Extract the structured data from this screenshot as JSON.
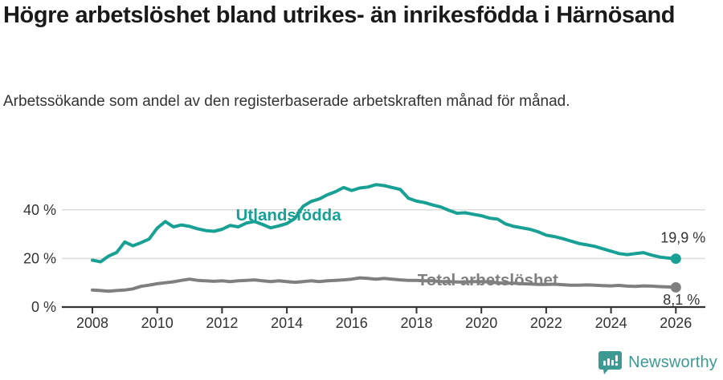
{
  "header": {
    "title": "Högre arbetslöshet bland utrikes- än inrikesfödda i Härnösand",
    "subtitle": "Arbetssökande som andel av den registerbaserade arbetskraften månad för månad."
  },
  "footer": {
    "brand": "Newsworthy",
    "brand_color": "#3d9a93",
    "logo_icon": "newsworthy-speech-bubble-bar-chart-icon"
  },
  "chart_data": {
    "type": "line",
    "title": "Högre arbetslöshet bland utrikes- än inrikesfödda i Härnösand",
    "subtitle": "Arbetssökande som andel av den registerbaserade arbetskraften månad för månad.",
    "xlabel": "",
    "ylabel": "",
    "x_start": 2008,
    "x_step": 0.25,
    "xlim": [
      2007.1,
      2026.9
    ],
    "ylim": [
      0,
      60
    ],
    "y_ticks": [
      0,
      20,
      40
    ],
    "y_tick_labels": [
      "0 %",
      "20 %",
      "40 %"
    ],
    "x_ticks": [
      2008,
      2010,
      2012,
      2014,
      2016,
      2018,
      2020,
      2022,
      2024,
      2026
    ],
    "grid": "horizontal",
    "grid_color": "#dcdcdc",
    "axis_color": "#333333",
    "tick_label_color": "#333333",
    "annotation_color": "#333333",
    "legend_position": "inline-labels",
    "series": [
      {
        "name": "Utlandsfödda",
        "color": "#18a095",
        "end_label": "19,9 %",
        "end_value": 19.9,
        "label_pos": {
          "x": 2014.05,
          "y": 38.0
        },
        "values": [
          19.3,
          18.6,
          21.0,
          22.5,
          26.8,
          25.2,
          26.5,
          28.0,
          32.5,
          35.2,
          33.0,
          33.8,
          33.2,
          32.2,
          31.5,
          31.2,
          32.0,
          33.6,
          33.0,
          34.6,
          35.2,
          34.0,
          32.6,
          33.4,
          34.4,
          36.5,
          41.5,
          43.5,
          44.5,
          46.2,
          47.5,
          49.2,
          48.0,
          49.0,
          49.4,
          50.4,
          50.0,
          49.2,
          48.4,
          44.8,
          43.6,
          43.0,
          42.0,
          41.2,
          39.8,
          38.6,
          38.8,
          38.2,
          37.6,
          36.6,
          36.2,
          34.2,
          33.2,
          32.6,
          32.0,
          31.0,
          29.6,
          29.0,
          28.2,
          27.2,
          26.2,
          25.6,
          25.0,
          24.0,
          23.0,
          22.0,
          21.6,
          22.0,
          22.4,
          21.4,
          20.6,
          20.2,
          19.9
        ]
      },
      {
        "name": "Total arbetslöshet",
        "color": "#7f7f7f",
        "end_label": "8,1 %",
        "end_value": 8.1,
        "label_pos": {
          "x": 2020.2,
          "y": 11.3
        },
        "values": [
          7.0,
          6.8,
          6.5,
          6.8,
          7.0,
          7.5,
          8.5,
          9.0,
          9.6,
          10.0,
          10.4,
          11.0,
          11.5,
          11.0,
          10.8,
          10.6,
          10.8,
          10.5,
          10.8,
          11.0,
          11.2,
          10.8,
          10.5,
          10.8,
          10.5,
          10.2,
          10.5,
          10.8,
          10.5,
          10.8,
          11.0,
          11.2,
          11.5,
          12.0,
          11.8,
          11.5,
          11.8,
          11.5,
          11.2,
          11.0,
          11.0,
          10.8,
          10.8,
          10.5,
          10.5,
          10.3,
          10.3,
          10.5,
          10.5,
          10.3,
          10.0,
          9.8,
          9.8,
          9.6,
          9.5,
          9.3,
          9.3,
          9.4,
          9.2,
          9.0,
          9.0,
          9.1,
          9.0,
          8.8,
          8.7,
          8.9,
          8.6,
          8.5,
          8.7,
          8.6,
          8.4,
          8.3,
          8.1
        ]
      }
    ]
  }
}
